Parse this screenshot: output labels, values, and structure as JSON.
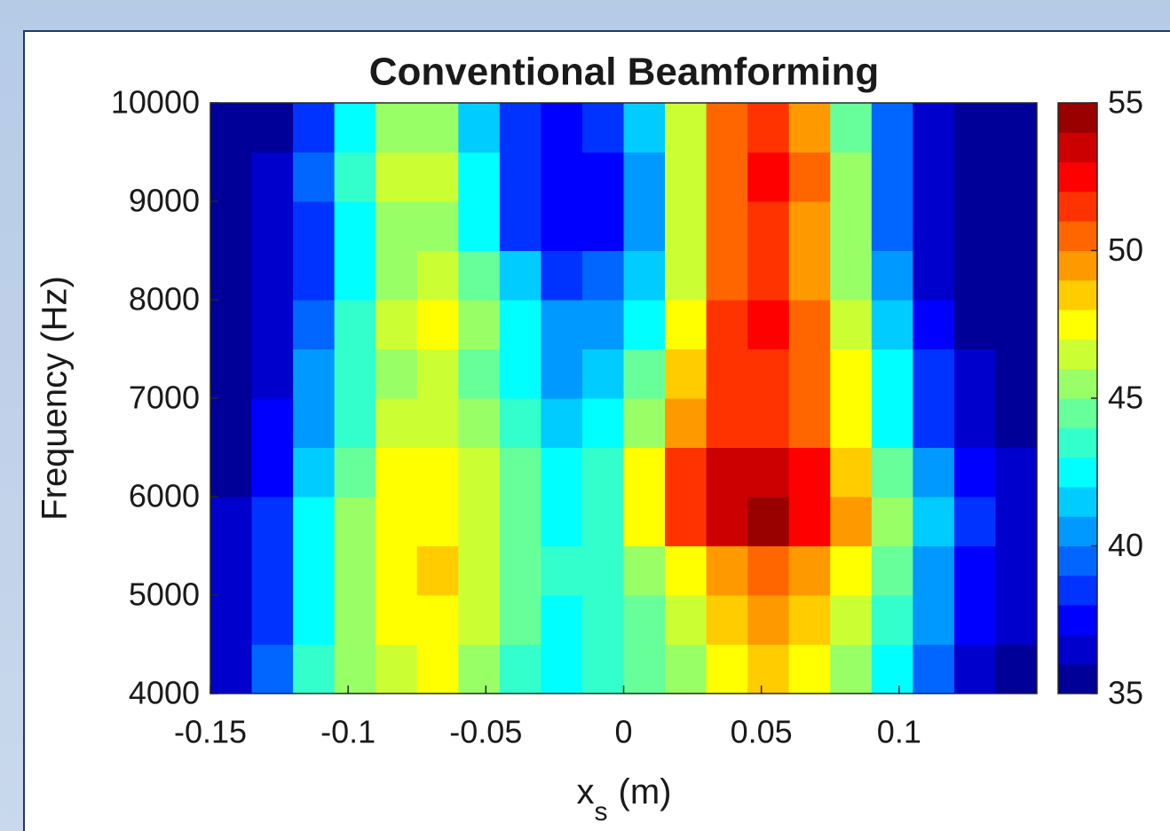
{
  "chart_data": {
    "type": "heatmap",
    "title": "Conventional Beamforming",
    "xlabel": {
      "main": "x",
      "sub": "s",
      "unit": "(m)"
    },
    "ylabel": "Frequency (Hz)",
    "xlim": [
      -0.15,
      0.15
    ],
    "xticks": [
      -0.15,
      -0.1,
      -0.05,
      0,
      0.05,
      0.1
    ],
    "ylim": [
      4000,
      10000
    ],
    "yticks": [
      4000,
      5000,
      6000,
      7000,
      8000,
      9000,
      10000
    ],
    "clim": [
      35,
      55
    ],
    "cticks": [
      35,
      40,
      45,
      50,
      55
    ],
    "colormap": "jet",
    "color_levels": 20,
    "x": [
      -0.1425,
      -0.1275,
      -0.1125,
      -0.0975,
      -0.0825,
      -0.0675,
      -0.0525,
      -0.0375,
      -0.0225,
      -0.0075,
      0.0075,
      0.0225,
      0.0375,
      0.0525,
      0.0675,
      0.0825,
      0.0975,
      0.1125,
      0.1275,
      0.1425
    ],
    "y": [
      4250,
      4750,
      5250,
      5750,
      6250,
      6750,
      7250,
      7750,
      8250,
      8750,
      9250,
      9750
    ],
    "z": [
      [
        36,
        39,
        43,
        45,
        46,
        47,
        45,
        43,
        42,
        43,
        44,
        45,
        47,
        48,
        47,
        45,
        42,
        39,
        36,
        35
      ],
      [
        36,
        38,
        42,
        45,
        47,
        47,
        46,
        44,
        42,
        43,
        44,
        46,
        48,
        49,
        48,
        46,
        43,
        40,
        37,
        36
      ],
      [
        36,
        38,
        42,
        45,
        47,
        48,
        46,
        44,
        43,
        43,
        45,
        47,
        49,
        50,
        49,
        47,
        44,
        40,
        37,
        36
      ],
      [
        36,
        38,
        42,
        45,
        47,
        47,
        46,
        44,
        42,
        43,
        47,
        51,
        53,
        54,
        52,
        49,
        45,
        41,
        38,
        36
      ],
      [
        35,
        37,
        41,
        44,
        47,
        47,
        46,
        44,
        42,
        43,
        47,
        51,
        53,
        53,
        52,
        48,
        44,
        40,
        37,
        36
      ],
      [
        35,
        37,
        40,
        43,
        46,
        46,
        45,
        43,
        41,
        42,
        45,
        49,
        51,
        51,
        50,
        47,
        42,
        38,
        36,
        35
      ],
      [
        35,
        36,
        40,
        43,
        45,
        46,
        44,
        42,
        40,
        41,
        44,
        48,
        51,
        51,
        50,
        47,
        42,
        38,
        36,
        35
      ],
      [
        35,
        36,
        39,
        43,
        46,
        47,
        45,
        42,
        40,
        40,
        42,
        47,
        51,
        52,
        50,
        46,
        41,
        37,
        35,
        35
      ],
      [
        35,
        36,
        38,
        42,
        45,
        46,
        44,
        41,
        38,
        39,
        41,
        46,
        50,
        51,
        49,
        45,
        40,
        36,
        35,
        35
      ],
      [
        35,
        36,
        38,
        42,
        45,
        45,
        42,
        38,
        37,
        37,
        40,
        46,
        50,
        51,
        49,
        45,
        39,
        36,
        35,
        35
      ],
      [
        35,
        36,
        39,
        43,
        46,
        46,
        42,
        38,
        37,
        37,
        40,
        46,
        50,
        52,
        50,
        45,
        39,
        36,
        35,
        35
      ],
      [
        35,
        35,
        38,
        42,
        45,
        45,
        41,
        38,
        37,
        38,
        41,
        46,
        50,
        51,
        49,
        44,
        39,
        36,
        35,
        35
      ]
    ]
  }
}
